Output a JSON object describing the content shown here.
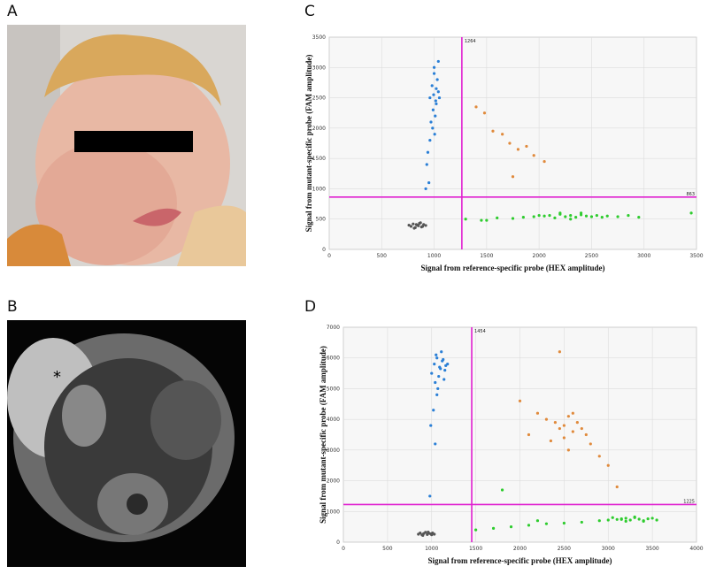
{
  "panel_labels": [
    "A",
    "B",
    "C",
    "D"
  ],
  "annotations": [
    "*"
  ],
  "chart_data": [
    {
      "type": "scatter",
      "xlabel": "Signal from reference-specific probe (HEX  amplitude)",
      "ylabel": "Signal from mutant-specific probe (FAM amplitude)",
      "xlim": [
        0,
        3500
      ],
      "ylim": [
        0,
        3500
      ],
      "xticks": [
        0,
        500,
        1000,
        1500,
        2000,
        2500,
        3000,
        3500
      ],
      "yticks": [
        0,
        500,
        1000,
        1500,
        2000,
        2500,
        3000,
        3500
      ],
      "grid": true,
      "vline": 1264,
      "hline": 863,
      "threshold_color": "#e020d0",
      "series": [
        {
          "color": "#555555",
          "x": [
            780,
            800,
            820,
            840,
            860,
            880,
            900,
            810,
            850,
            870,
            830,
            890,
            760,
            920
          ],
          "y": [
            380,
            420,
            360,
            400,
            430,
            370,
            410,
            350,
            390,
            440,
            410,
            380,
            400,
            395
          ]
        },
        {
          "color": "#2a7fd6",
          "x": [
            960,
            980,
            1000,
            1020,
            1040,
            990,
            1010,
            970,
            1030,
            1050,
            1000,
            1020,
            985,
            1005,
            1015,
            995,
            1040,
            960,
            940,
            930,
            950,
            920
          ],
          "y": [
            2500,
            2700,
            2900,
            2400,
            2600,
            2300,
            2200,
            2100,
            2800,
            2500,
            3000,
            2650,
            2000,
            1900,
            2450,
            2550,
            3100,
            1800,
            1600,
            1400,
            1100,
            1000
          ]
        },
        {
          "color": "#e08a3c",
          "x": [
            1400,
            1480,
            1560,
            1650,
            1720,
            1800,
            1880,
            1950,
            1750,
            2050
          ],
          "y": [
            2350,
            2250,
            1950,
            1900,
            1750,
            1650,
            1700,
            1550,
            1200,
            1450
          ]
        },
        {
          "color": "#2ecc2e",
          "x": [
            1300,
            1450,
            1600,
            1750,
            1850,
            1950,
            2050,
            2100,
            2150,
            2200,
            2250,
            2300,
            2350,
            2400,
            2450,
            2500,
            2550,
            2600,
            2650,
            2750,
            2850,
            2950,
            2200,
            2300,
            2400,
            2000,
            1500,
            3450
          ],
          "y": [
            500,
            480,
            520,
            510,
            530,
            540,
            550,
            560,
            520,
            580,
            540,
            560,
            530,
            570,
            550,
            540,
            560,
            530,
            550,
            540,
            560,
            530,
            600,
            500,
            600,
            560,
            480,
            600
          ]
        }
      ]
    },
    {
      "type": "scatter",
      "xlabel": "Signal from reference-specific probe (HEX  amplitude)",
      "ylabel": "Signal from mutant-specific probe (FAM amplitude)",
      "xlim": [
        0,
        4000
      ],
      "ylim": [
        0,
        7000
      ],
      "xticks": [
        0,
        500,
        1000,
        1500,
        2000,
        2500,
        3000,
        3500,
        4000
      ],
      "yticks": [
        0,
        1000,
        2000,
        3000,
        4000,
        5000,
        6000,
        7000
      ],
      "grid": true,
      "vline": 1454,
      "hline": 1225,
      "threshold_color": "#e020d0",
      "series": [
        {
          "color": "#555555",
          "x": [
            850,
            870,
            890,
            910,
            930,
            950,
            970,
            990,
            1010,
            1030,
            900,
            960,
            1000
          ],
          "y": [
            260,
            300,
            240,
            280,
            320,
            250,
            290,
            270,
            300,
            260,
            220,
            330,
            240
          ]
        },
        {
          "color": "#2a7fd6",
          "x": [
            1000,
            1030,
            1060,
            1090,
            1120,
            1150,
            1180,
            1050,
            1080,
            1110,
            1140,
            1070,
            1100,
            1130,
            1040,
            1160,
            1060,
            1020,
            990,
            1040,
            980
          ],
          "y": [
            5500,
            5800,
            6000,
            5700,
            5900,
            5600,
            5800,
            6100,
            5400,
            6200,
            5300,
            5000,
            5650,
            5950,
            5200,
            5750,
            4800,
            4300,
            3800,
            3200,
            1500
          ]
        },
        {
          "color": "#e08a3c",
          "x": [
            2000,
            2200,
            2300,
            2400,
            2450,
            2500,
            2550,
            2600,
            2650,
            2700,
            2500,
            2450,
            2600,
            2800,
            2900,
            3000,
            3100,
            2100,
            2350,
            2750,
            2550
          ],
          "y": [
            4600,
            4200,
            4000,
            3900,
            3700,
            3800,
            4100,
            3600,
            3900,
            3700,
            3400,
            6200,
            4200,
            3200,
            2800,
            2500,
            1800,
            3500,
            3300,
            3500,
            3000
          ]
        },
        {
          "color": "#2ecc2e",
          "x": [
            1500,
            1700,
            1900,
            2100,
            2300,
            2500,
            2700,
            2900,
            3000,
            3100,
            3150,
            3200,
            3250,
            3300,
            3350,
            3400,
            3450,
            3500,
            3550,
            3050,
            3200,
            3300,
            3400,
            3150,
            2200,
            1800
          ],
          "y": [
            400,
            450,
            500,
            550,
            600,
            620,
            650,
            700,
            720,
            740,
            760,
            780,
            720,
            800,
            750,
            700,
            760,
            780,
            720,
            800,
            680,
            820,
            680,
            740,
            700,
            1700
          ]
        }
      ]
    }
  ]
}
